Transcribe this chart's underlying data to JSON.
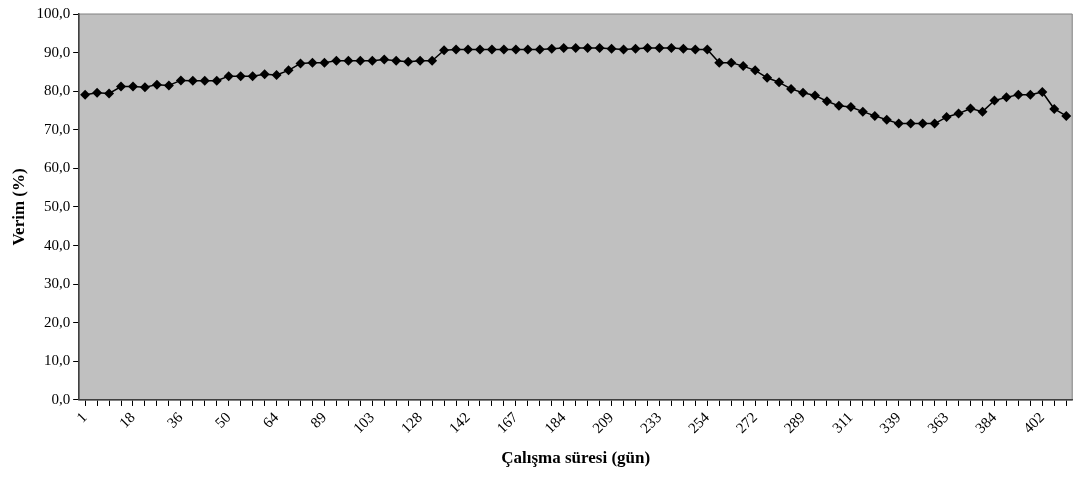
{
  "chart_data": {
    "type": "line",
    "xlabel": "Çalışma süresi (gün)",
    "ylabel": "Verim (%)",
    "categories": [
      "1",
      null,
      null,
      null,
      "18",
      null,
      null,
      null,
      "36",
      null,
      null,
      null,
      "50",
      null,
      null,
      null,
      "64",
      null,
      null,
      null,
      "89",
      null,
      null,
      null,
      "103",
      null,
      null,
      null,
      "128",
      null,
      null,
      null,
      "142",
      null,
      null,
      null,
      "167",
      null,
      null,
      null,
      "184",
      null,
      null,
      null,
      "209",
      null,
      null,
      null,
      "233",
      null,
      null,
      null,
      "254",
      null,
      null,
      null,
      "272",
      null,
      null,
      null,
      "289",
      null,
      null,
      null,
      "311",
      null,
      null,
      null,
      "339",
      null,
      null,
      null,
      "363",
      null,
      null,
      null,
      "384",
      null,
      null,
      null,
      "402",
      null,
      null
    ],
    "series": [
      {
        "color": "#000000",
        "values": [
          79.1,
          79.6,
          79.4,
          81.2,
          81.2,
          81.0,
          81.7,
          81.5,
          82.8,
          82.7,
          82.7,
          82.7,
          83.9,
          83.9,
          83.9,
          84.4,
          84.2,
          85.4,
          87.2,
          87.4,
          87.4,
          87.9,
          87.9,
          87.9,
          87.9,
          88.2,
          87.9,
          87.6,
          87.9,
          87.9,
          90.6,
          90.8,
          90.8,
          90.8,
          90.8,
          90.8,
          90.8,
          90.8,
          90.8,
          91.0,
          91.2,
          91.2,
          91.2,
          91.2,
          91.0,
          90.8,
          91.0,
          91.2,
          91.2,
          91.2,
          91.0,
          90.8,
          90.8,
          87.4,
          87.4,
          86.5,
          85.4,
          83.5,
          82.3,
          80.6,
          79.6,
          78.9,
          77.4,
          76.2,
          75.9,
          74.7,
          73.6,
          72.6,
          71.6,
          71.6,
          71.6,
          71.6,
          73.3,
          74.2,
          75.5,
          74.7,
          77.6,
          78.4,
          79.1,
          79.1,
          79.8,
          75.4,
          73.6
        ]
      }
    ],
    "ylim": [
      0,
      100
    ],
    "yticks": [
      {
        "value": 0,
        "label": "0,0"
      },
      {
        "value": 10,
        "label": "10,0"
      },
      {
        "value": 20,
        "label": "20,0"
      },
      {
        "value": 30,
        "label": "30,0"
      },
      {
        "value": 40,
        "label": "40,0"
      },
      {
        "value": 50,
        "label": "50,0"
      },
      {
        "value": 60,
        "label": "60,0"
      },
      {
        "value": 70,
        "label": "70,0"
      },
      {
        "value": 80,
        "label": "80,0"
      },
      {
        "value": 90,
        "label": "90,0"
      },
      {
        "value": 100,
        "label": "100,0"
      }
    ],
    "grid": false,
    "legend": false,
    "marker": "diamond",
    "line_style": "solid"
  }
}
